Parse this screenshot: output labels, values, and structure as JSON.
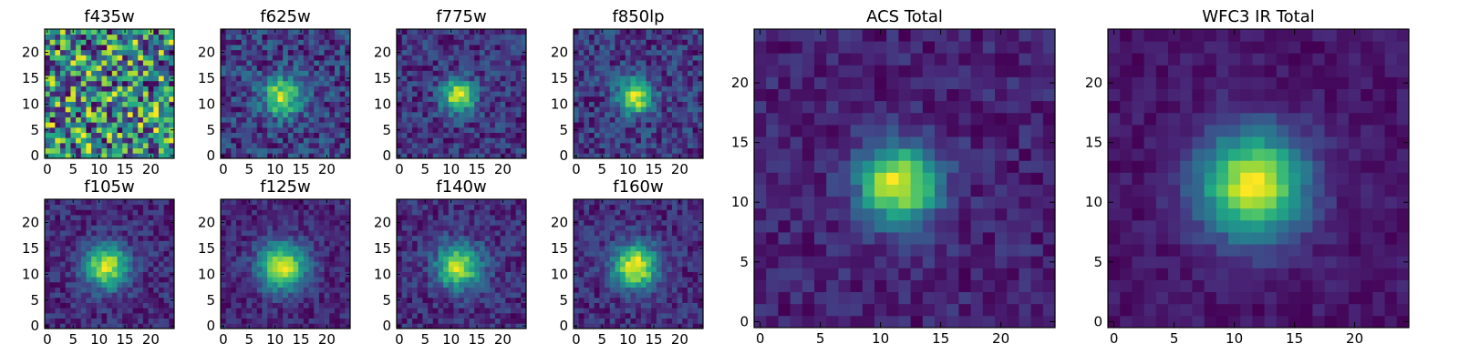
{
  "colors": {
    "colormap": "viridis",
    "frame": "#000000",
    "background": "#ffffff"
  },
  "chart_data": [
    {
      "type": "heatmap",
      "title": "f435w",
      "grid_size": 25,
      "source_center": [
        11.5,
        11.5
      ],
      "peak": 0.0,
      "sigma": 3.0,
      "noise": 1.0,
      "seed": 11,
      "xticks": [
        "0",
        "5",
        "10",
        "15",
        "20"
      ],
      "yticks": [
        "0",
        "5",
        "10",
        "15",
        "20"
      ],
      "xlim": [
        -0.5,
        24.5
      ],
      "ylim": [
        -0.5,
        24.5
      ]
    },
    {
      "type": "heatmap",
      "title": "f625w",
      "grid_size": 25,
      "source_center": [
        11.5,
        11.5
      ],
      "peak": 1.0,
      "sigma": 2.6,
      "noise": 0.28,
      "seed": 23,
      "xticks": [
        "0",
        "5",
        "10",
        "15",
        "20"
      ],
      "yticks": [
        "0",
        "5",
        "10",
        "15",
        "20"
      ],
      "xlim": [
        -0.5,
        24.5
      ],
      "ylim": [
        -0.5,
        24.5
      ]
    },
    {
      "type": "heatmap",
      "title": "f775w",
      "grid_size": 25,
      "source_center": [
        11.5,
        11.5
      ],
      "peak": 1.0,
      "sigma": 2.2,
      "noise": 0.2,
      "seed": 37,
      "xticks": [
        "0",
        "5",
        "10",
        "15",
        "20"
      ],
      "yticks": [
        "0",
        "5",
        "10",
        "15",
        "20"
      ],
      "xlim": [
        -0.5,
        24.5
      ],
      "ylim": [
        -0.5,
        24.5
      ]
    },
    {
      "type": "heatmap",
      "title": "f850lp",
      "grid_size": 25,
      "source_center": [
        11.5,
        11.5
      ],
      "peak": 1.0,
      "sigma": 2.3,
      "noise": 0.22,
      "seed": 41,
      "xticks": [
        "0",
        "5",
        "10",
        "15",
        "20"
      ],
      "yticks": [
        "0",
        "5",
        "10",
        "15",
        "20"
      ],
      "xlim": [
        -0.5,
        24.5
      ],
      "ylim": [
        -0.5,
        24.5
      ]
    },
    {
      "type": "heatmap",
      "title": "f105w",
      "grid_size": 25,
      "source_center": [
        11.5,
        11.5
      ],
      "peak": 1.0,
      "sigma": 3.0,
      "noise": 0.16,
      "seed": 53,
      "xticks": [
        "0",
        "5",
        "10",
        "15",
        "20"
      ],
      "yticks": [
        "0",
        "5",
        "10",
        "15",
        "20"
      ],
      "xlim": [
        -0.5,
        24.5
      ],
      "ylim": [
        -0.5,
        24.5
      ]
    },
    {
      "type": "heatmap",
      "title": "f125w",
      "grid_size": 25,
      "source_center": [
        11.5,
        11.5
      ],
      "peak": 1.0,
      "sigma": 3.2,
      "noise": 0.13,
      "seed": 67,
      "xticks": [
        "0",
        "5",
        "10",
        "15",
        "20"
      ],
      "yticks": [
        "0",
        "5",
        "10",
        "15",
        "20"
      ],
      "xlim": [
        -0.5,
        24.5
      ],
      "ylim": [
        -0.5,
        24.5
      ]
    },
    {
      "type": "heatmap",
      "title": "f140w",
      "grid_size": 25,
      "source_center": [
        11.5,
        11.5
      ],
      "peak": 1.0,
      "sigma": 3.0,
      "noise": 0.17,
      "seed": 79,
      "xticks": [
        "0",
        "5",
        "10",
        "15",
        "20"
      ],
      "yticks": [
        "0",
        "5",
        "10",
        "15",
        "20"
      ],
      "xlim": [
        -0.5,
        24.5
      ],
      "ylim": [
        -0.5,
        24.5
      ]
    },
    {
      "type": "heatmap",
      "title": "f160w",
      "grid_size": 25,
      "source_center": [
        11.5,
        11.5
      ],
      "peak": 1.0,
      "sigma": 3.0,
      "noise": 0.15,
      "seed": 83,
      "xticks": [
        "0",
        "5",
        "10",
        "15",
        "20"
      ],
      "yticks": [
        "0",
        "5",
        "10",
        "15",
        "20"
      ],
      "xlim": [
        -0.5,
        24.5
      ],
      "ylim": [
        -0.5,
        24.5
      ]
    },
    {
      "type": "heatmap",
      "title": "ACS Total",
      "grid_size": 25,
      "source_center": [
        11.5,
        11.5
      ],
      "peak": 1.0,
      "sigma": 2.3,
      "noise": 0.11,
      "seed": 97,
      "xticks": [
        "0",
        "5",
        "10",
        "15",
        "20"
      ],
      "yticks": [
        "0",
        "5",
        "10",
        "15",
        "20"
      ],
      "xlim": [
        -0.5,
        24.5
      ],
      "ylim": [
        -0.5,
        24.5
      ]
    },
    {
      "type": "heatmap",
      "title": "WFC3 IR Total",
      "grid_size": 25,
      "source_center": [
        11.5,
        11.5
      ],
      "peak": 1.0,
      "sigma": 3.1,
      "noise": 0.07,
      "seed": 101,
      "xticks": [
        "0",
        "5",
        "10",
        "15",
        "20"
      ],
      "yticks": [
        "0",
        "5",
        "10",
        "15",
        "20"
      ],
      "xlim": [
        -0.5,
        24.5
      ],
      "ylim": [
        -0.5,
        24.5
      ]
    }
  ]
}
